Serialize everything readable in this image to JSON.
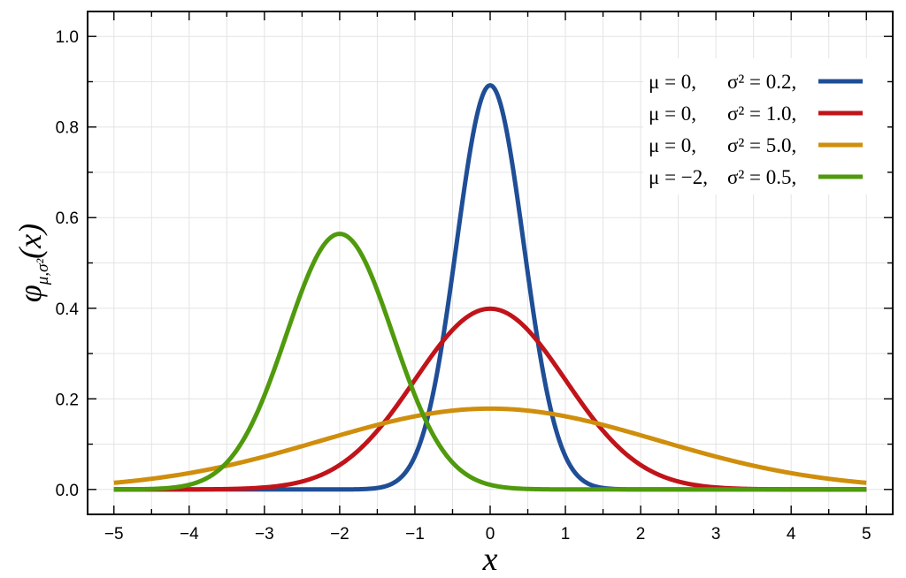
{
  "chart_data": {
    "type": "line",
    "xlabel": "x",
    "ylabel": "φ",
    "ylabel_subscript": "μ,σ²",
    "ylabel_argument": "(x)",
    "xlim": [
      -5.35,
      5.35
    ],
    "ylim": [
      -0.055,
      1.055
    ],
    "x_ticks": [
      -5,
      -4,
      -3,
      -2,
      -1,
      0,
      1,
      2,
      3,
      4,
      5
    ],
    "x_tick_labels": [
      "−5",
      "−4",
      "−3",
      "−2",
      "−1",
      "0",
      "1",
      "2",
      "3",
      "4",
      "5"
    ],
    "y_ticks": [
      0.0,
      0.2,
      0.4,
      0.6,
      0.8,
      1.0
    ],
    "y_tick_labels": [
      "0.0",
      "0.2",
      "0.4",
      "0.6",
      "0.8",
      "1.0"
    ],
    "grid": true,
    "legend_position": "top-right",
    "x": [
      -5,
      -4.5,
      -4,
      -3.5,
      -3,
      -2.5,
      -2,
      -1.5,
      -1,
      -0.5,
      0,
      0.5,
      1,
      1.5,
      2,
      2.5,
      3,
      3.5,
      4,
      4.5,
      5
    ],
    "series": [
      {
        "mu_label": "μ = 0,",
        "sigma_label": "σ² = 0.2,",
        "color": "#1f4e96",
        "mu": 0,
        "variance": 0.2,
        "values": [
          0.0,
          0.0,
          0.0,
          0.0,
          0.0,
          0.0,
          0.0,
          0.0003,
          0.0073,
          0.048,
          0.8921,
          0.048,
          0.0073,
          0.0003,
          0.0,
          0.0,
          0.0,
          0.0,
          0.0,
          0.0,
          0.0
        ]
      },
      {
        "mu_label": "μ = 0,",
        "sigma_label": "σ² = 1.0,",
        "color": "#c0141a",
        "mu": 0,
        "variance": 1.0,
        "values": [
          0.0,
          0.0,
          0.0001,
          0.0009,
          0.0044,
          0.0175,
          0.054,
          0.1295,
          0.242,
          0.3521,
          0.3989,
          0.3521,
          0.242,
          0.1295,
          0.054,
          0.0175,
          0.0044,
          0.0009,
          0.0001,
          0.0,
          0.0
        ]
      },
      {
        "mu_label": "μ = 0,",
        "sigma_label": "σ² = 5.0,",
        "color": "#cf8e0c",
        "mu": 0,
        "variance": 5.0,
        "values": [
          0.0146,
          0.0237,
          0.0364,
          0.0524,
          0.0723,
          0.0951,
          0.1197,
          0.1419,
          0.1614,
          0.1743,
          0.1784,
          0.1743,
          0.1614,
          0.1419,
          0.1197,
          0.0951,
          0.0723,
          0.0524,
          0.0364,
          0.0237,
          0.0146
        ]
      },
      {
        "mu_label": "μ = −2,",
        "sigma_label": "σ² = 0.5,",
        "color": "#4f9a0d",
        "mu": -2,
        "variance": 0.5,
        "values": [
          0.0001,
          0.0011,
          0.0103,
          0.0593,
          0.2075,
          0.4394,
          0.5642,
          0.4394,
          0.2075,
          0.0593,
          0.0103,
          0.0011,
          0.0001,
          0.0,
          0.0,
          0.0,
          0.0,
          0.0,
          0.0,
          0.0,
          0.0
        ]
      }
    ]
  }
}
